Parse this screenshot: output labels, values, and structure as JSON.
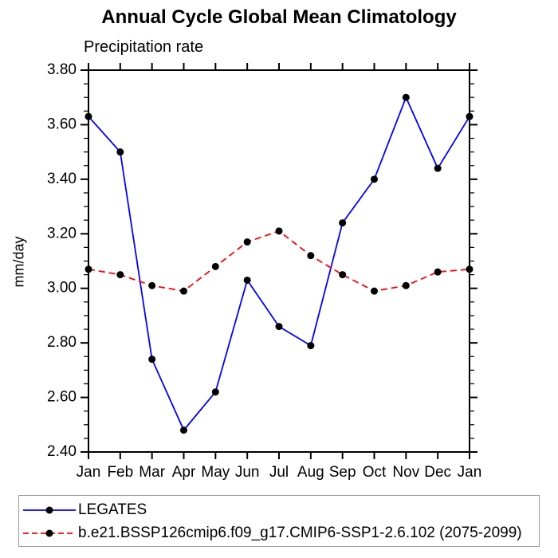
{
  "title": "Annual Cycle Global Mean Climatology",
  "subtitle": "Precipitation rate",
  "ylabel": "mm/day",
  "chart_data": {
    "type": "line",
    "categories": [
      "Jan",
      "Feb",
      "Mar",
      "Apr",
      "May",
      "Jun",
      "Jul",
      "Aug",
      "Sep",
      "Oct",
      "Nov",
      "Dec",
      "Jan"
    ],
    "series": [
      {
        "name": "LEGATES",
        "color": "#0000ff",
        "line_style": "solid",
        "marker": "filled-circle",
        "marker_color": "#000000",
        "values": [
          3.63,
          3.5,
          2.74,
          2.48,
          2.62,
          3.03,
          2.86,
          2.79,
          3.24,
          3.4,
          3.7,
          3.44,
          3.63
        ]
      },
      {
        "name": "b.e21.BSSP126cmip6.f09_g17.CMIP6-SSP1-2.6.102 (2075-2099)",
        "color": "#ff0000",
        "line_style": "dashed",
        "marker": "filled-circle",
        "marker_color": "#000000",
        "values": [
          3.07,
          3.05,
          3.01,
          2.99,
          3.08,
          3.17,
          3.21,
          3.12,
          3.05,
          2.99,
          3.01,
          3.06,
          3.07
        ]
      }
    ],
    "xlabel": "",
    "ylim": [
      2.4,
      3.8
    ],
    "ytick_labels": [
      "3.80",
      "3.60",
      "3.40",
      "3.20",
      "3.00",
      "2.80",
      "2.60",
      "2.40"
    ],
    "ytick_step": 0.2,
    "yminor_step": 0.05,
    "grid": false,
    "legend_position": "bottom-left-box",
    "axis_color": "#000000",
    "text_color": "#000000"
  }
}
